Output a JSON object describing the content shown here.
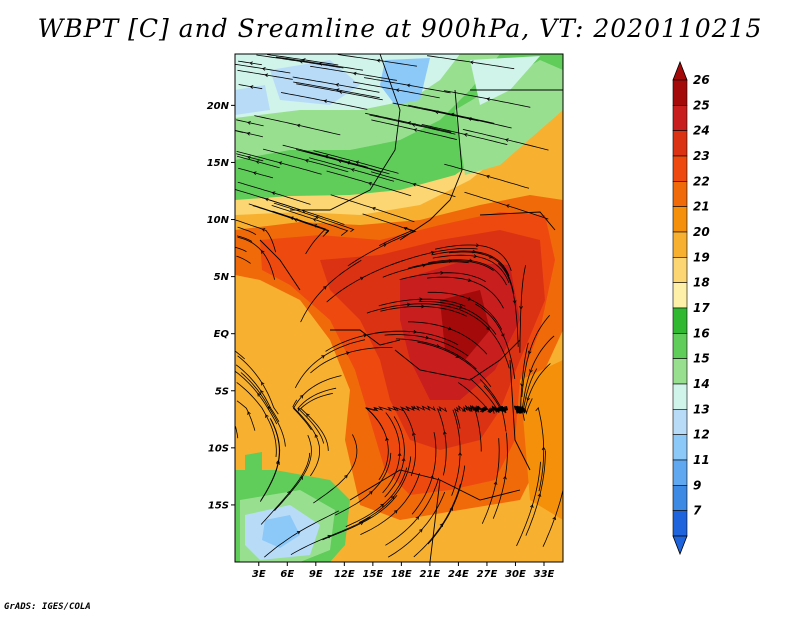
{
  "title": "WBPT [C] and Sreamline at 900hPa, VT: 2020110215",
  "credit": "GrADS: IGES/COLA",
  "lat_labels": [
    {
      "value": 20,
      "label": "20N"
    },
    {
      "value": 15,
      "label": "15N"
    },
    {
      "value": 10,
      "label": "10N"
    },
    {
      "value": 5,
      "label": "5N"
    },
    {
      "value": 0,
      "label": "EQ"
    },
    {
      "value": -5,
      "label": "5S"
    },
    {
      "value": -10,
      "label": "10S"
    },
    {
      "value": -15,
      "label": "15S"
    }
  ],
  "lon_labels": [
    {
      "value": 3,
      "label": "3E"
    },
    {
      "value": 6,
      "label": "6E"
    },
    {
      "value": 9,
      "label": "9E"
    },
    {
      "value": 12,
      "label": "12E"
    },
    {
      "value": 15,
      "label": "15E"
    },
    {
      "value": 18,
      "label": "18E"
    },
    {
      "value": 21,
      "label": "21E"
    },
    {
      "value": 24,
      "label": "24E"
    },
    {
      "value": 27,
      "label": "27E"
    },
    {
      "value": 30,
      "label": "30E"
    },
    {
      "value": 33,
      "label": "33E"
    }
  ],
  "map_extent": {
    "lon": [
      0.5,
      35
    ],
    "lat": [
      -20,
      24.5
    ]
  },
  "colorbar": {
    "labels": [
      "26",
      "25",
      "24",
      "23",
      "22",
      "21",
      "20",
      "19",
      "18",
      "17",
      "16",
      "15",
      "14",
      "13",
      "12",
      "11",
      "9",
      "7"
    ],
    "colors": [
      "#a50a0a",
      "#c81e1e",
      "#dc3214",
      "#ee4a10",
      "#f06a0a",
      "#f5900a",
      "#f8b030",
      "#fbd672",
      "#fef0a8",
      "#30b830",
      "#60cc5a",
      "#98e090",
      "#d0f4ea",
      "#b8dcf8",
      "#8cc8f8",
      "#60a8f0",
      "#3c8ae4",
      "#1e64dc"
    ]
  },
  "temperature_regions": [
    {
      "name": "northern-cool-band",
      "values": "14-17"
    },
    {
      "name": "central-warm-core",
      "values": "23-25"
    },
    {
      "name": "southern-cool-patch",
      "values": "12-16"
    }
  ]
}
